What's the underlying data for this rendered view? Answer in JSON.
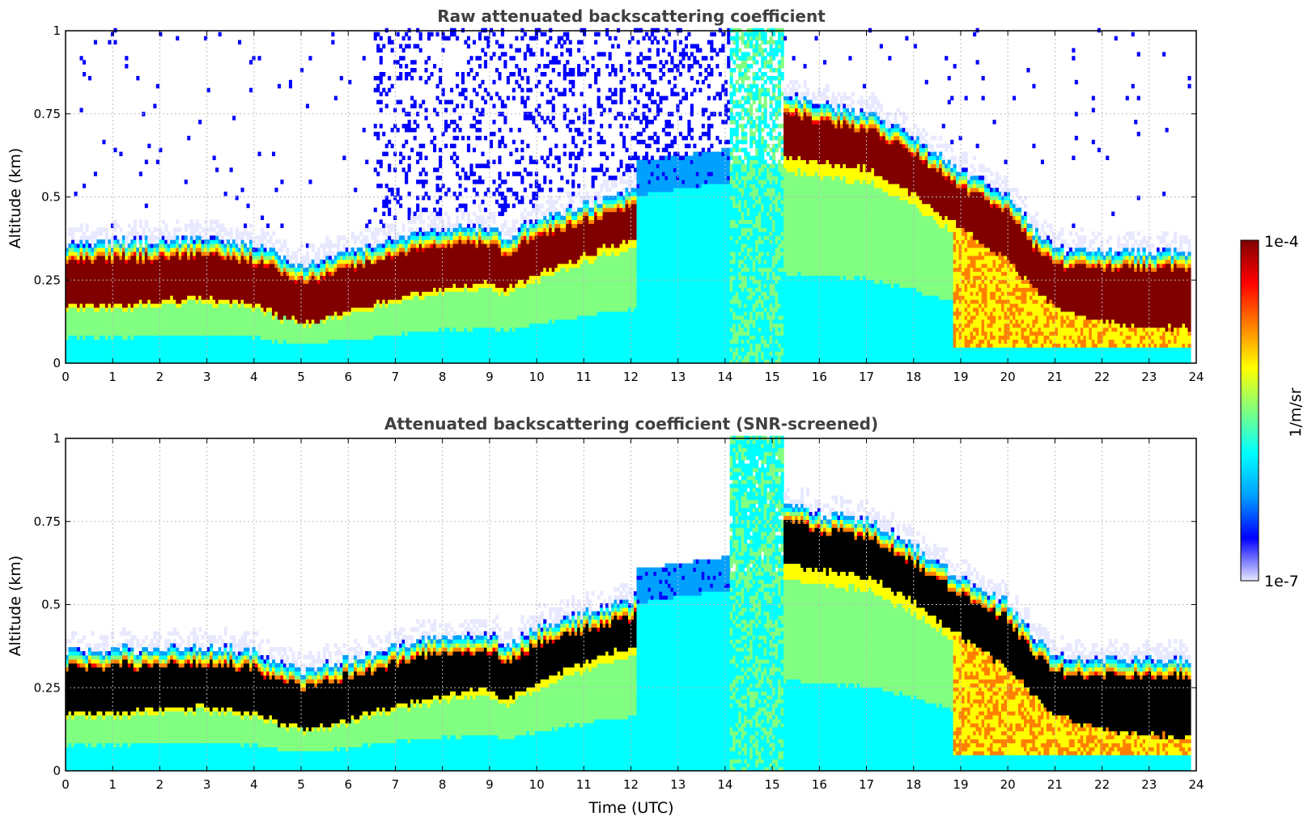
{
  "chart_data": [
    {
      "type": "heatmap",
      "title": "Raw attenuated backscattering coefficient",
      "xlabel": "",
      "ylabel": "Altitude (km)",
      "xlim": [
        0,
        24
      ],
      "ylim": [
        0,
        1
      ],
      "xticks": [
        "0",
        "1",
        "2",
        "3",
        "4",
        "5",
        "6",
        "7",
        "8",
        "9",
        "10",
        "11",
        "12",
        "13",
        "14",
        "15",
        "16",
        "17",
        "18",
        "19",
        "20",
        "21",
        "22",
        "23",
        "24"
      ],
      "yticks": [
        "0",
        "0.25",
        "0.5",
        "0.75",
        "1"
      ],
      "grid": true,
      "screened": false,
      "layer_top_km": [
        [
          0,
          0.3
        ],
        [
          1,
          0.31
        ],
        [
          2,
          0.31
        ],
        [
          3,
          0.32
        ],
        [
          4,
          0.3
        ],
        [
          4.5,
          0.27
        ],
        [
          5,
          0.24
        ],
        [
          5.5,
          0.26
        ],
        [
          6,
          0.28
        ],
        [
          7,
          0.32
        ],
        [
          8,
          0.35
        ],
        [
          9,
          0.36
        ],
        [
          9.3,
          0.32
        ],
        [
          10,
          0.38
        ],
        [
          11,
          0.42
        ],
        [
          12,
          0.46
        ],
        [
          15.2,
          0.76
        ],
        [
          16,
          0.72
        ],
        [
          17,
          0.7
        ],
        [
          18,
          0.62
        ],
        [
          19,
          0.52
        ],
        [
          20,
          0.45
        ],
        [
          20.5,
          0.35
        ],
        [
          21,
          0.29
        ],
        [
          22,
          0.28
        ],
        [
          23,
          0.28
        ],
        [
          23.8,
          0.28
        ]
      ],
      "layer_bottom_km": [
        [
          0,
          0.17
        ],
        [
          1,
          0.17
        ],
        [
          2,
          0.18
        ],
        [
          3,
          0.19
        ],
        [
          4,
          0.17
        ],
        [
          4.5,
          0.14
        ],
        [
          5,
          0.12
        ],
        [
          5.5,
          0.13
        ],
        [
          6,
          0.15
        ],
        [
          7,
          0.19
        ],
        [
          8,
          0.22
        ],
        [
          9,
          0.24
        ],
        [
          9.3,
          0.21
        ],
        [
          10,
          0.26
        ],
        [
          11,
          0.32
        ],
        [
          12,
          0.37
        ],
        [
          15.2,
          0.62
        ],
        [
          16,
          0.6
        ],
        [
          17,
          0.58
        ],
        [
          18,
          0.5
        ],
        [
          19,
          0.4
        ],
        [
          20,
          0.3
        ],
        [
          20.5,
          0.22
        ],
        [
          21,
          0.16
        ],
        [
          22,
          0.12
        ],
        [
          23,
          0.1
        ],
        [
          23.8,
          0.1
        ]
      ]
    },
    {
      "type": "heatmap",
      "title": "Attenuated backscattering coefficient (SNR-screened)",
      "xlabel": "Time (UTC)",
      "ylabel": "Altitude (km)",
      "xlim": [
        0,
        24
      ],
      "ylim": [
        0,
        1
      ],
      "xticks": [
        "0",
        "1",
        "2",
        "3",
        "4",
        "5",
        "6",
        "7",
        "8",
        "9",
        "10",
        "11",
        "12",
        "13",
        "14",
        "15",
        "16",
        "17",
        "18",
        "19",
        "20",
        "21",
        "22",
        "23",
        "24"
      ],
      "yticks": [
        "0",
        "0.25",
        "0.5",
        "0.75",
        "1"
      ],
      "grid": true,
      "screened": true
    }
  ],
  "colorbar": {
    "label": "1/m/sr",
    "min_label": "1e-7",
    "max_label": "1e-4",
    "scale": "log",
    "colors": [
      "#e8e8ff",
      "#0000ff",
      "#00a0ff",
      "#00ffff",
      "#80ff80",
      "#ffff00",
      "#ff8000",
      "#ff0000",
      "#800000"
    ]
  }
}
